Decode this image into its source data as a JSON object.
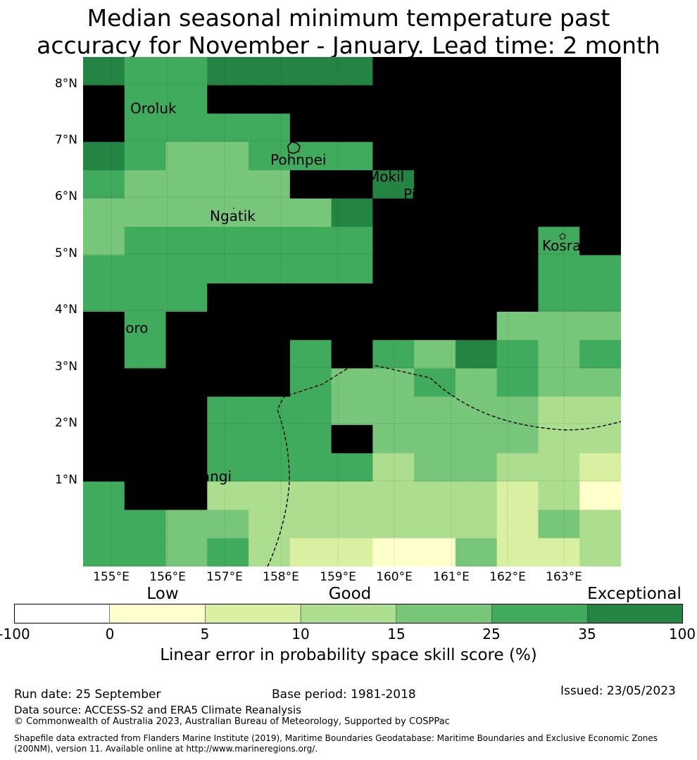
{
  "title": {
    "line1": "Median seasonal minimum temperature past",
    "line2": "accuracy for November - January. Lead time: 2 month"
  },
  "map": {
    "lat_labels": [
      "8°N",
      "7°N",
      "6°N",
      "5°N",
      "4°N",
      "3°N",
      "2°N",
      "1°N"
    ],
    "lon_labels": [
      "155°E",
      "156°E",
      "157°E",
      "158°E",
      "159°E",
      "160°E",
      "161°E",
      "162°E",
      "163°E"
    ],
    "places": [
      {
        "name": "Oroluk"
      },
      {
        "name": "Pohnpei"
      },
      {
        "name": "Mokil"
      },
      {
        "name": "Pingelap"
      },
      {
        "name": "Ngatik"
      },
      {
        "name": "Kosrae"
      },
      {
        "name": "Nukuoro"
      },
      {
        "name": "Kapingamarangi"
      }
    ],
    "class_colors": [
      "#ffffcc",
      "#d9f0a3",
      "#addd8e",
      "#78c679",
      "#41ab5d",
      "#238443"
    ],
    "grid_cells": [
      "5445555666666",
      "6446666666666",
      "6444466666666",
      "5433444666666",
      "4333366566666",
      "3333335666666",
      "3444444666646",
      "4444444666644",
      "4446666666644",
      "6466666666333",
      "6466646435434",
      "6666643343433",
      "6664443333322",
      "6664446333322",
      "6664444233221",
      "4662222222120",
      "4433222222132",
      "4434211003112"
    ]
  },
  "colorbar": {
    "ticks": [
      "-100",
      "0",
      "5",
      "10",
      "15",
      "25",
      "35",
      "100"
    ],
    "colors": [
      "#ffffff",
      "#ffffcc",
      "#d9f0a3",
      "#addd8e",
      "#78c679",
      "#41ab5d",
      "#238443"
    ],
    "class_labels": [
      "Low",
      "Good",
      "Exceptional"
    ],
    "title": "Linear error in probability space skill score (%)"
  },
  "footer": {
    "run_date": "Run date: 25 September",
    "base_period": "Base period: 1981-2018",
    "issued": "Issued: 23/05/2023",
    "data_source": "Data source: ACCESS-S2 and ERA5 Climate Reanalysis",
    "copyright": "© Commonwealth of Australia 2023, Australian Bureau of Meteorology, Supported by COSPPac",
    "shapefile_line1": "Shapefile data extracted from Flanders Marine Institute (2019), Maritime Boundaries Geodatabase: Maritime Boundaries and Exclusive Economic Zones",
    "shapefile_line2": "(200NM), version 11. Available online at http://www.marineregions.org/."
  }
}
